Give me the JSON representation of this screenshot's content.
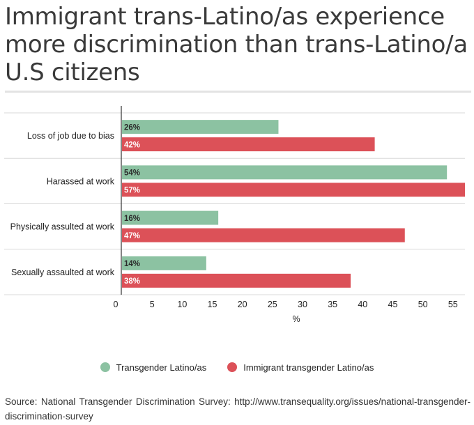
{
  "title": "Immigrant trans-Latino/as experience more discrimination than trans-Latino/a U.S citizens",
  "source": "Source: National Transgender Discrimination Survey: http://www.transequality.org/issues/national-transgender-discrimination-survey",
  "colors": {
    "series1": "#8cc2a2",
    "series2": "#dc5158",
    "grid": "#d9d9d9",
    "axis": "#333333"
  },
  "chart_data": {
    "type": "bar",
    "orientation": "horizontal",
    "categories": [
      "Loss of job due to bias",
      "Harassed at work",
      "Physically assulted at work",
      "Sexually assaulted at work"
    ],
    "series": [
      {
        "name": "Transgender Latino/as",
        "values": [
          26,
          54,
          16,
          14
        ],
        "labels": [
          "26%",
          "54%",
          "16%",
          "14%"
        ]
      },
      {
        "name": "Immigrant transgender Latino/as",
        "values": [
          42,
          57,
          47,
          38
        ],
        "labels": [
          "42%",
          "57%",
          "47%",
          "38%"
        ]
      }
    ],
    "xlabel": "%",
    "ylabel": "",
    "xlim": [
      0,
      57
    ],
    "xticks": [
      "0",
      "5",
      "10",
      "15",
      "20",
      "25",
      "30",
      "35",
      "40",
      "45",
      "50",
      "55"
    ],
    "legend": "bottom",
    "grid": true
  }
}
